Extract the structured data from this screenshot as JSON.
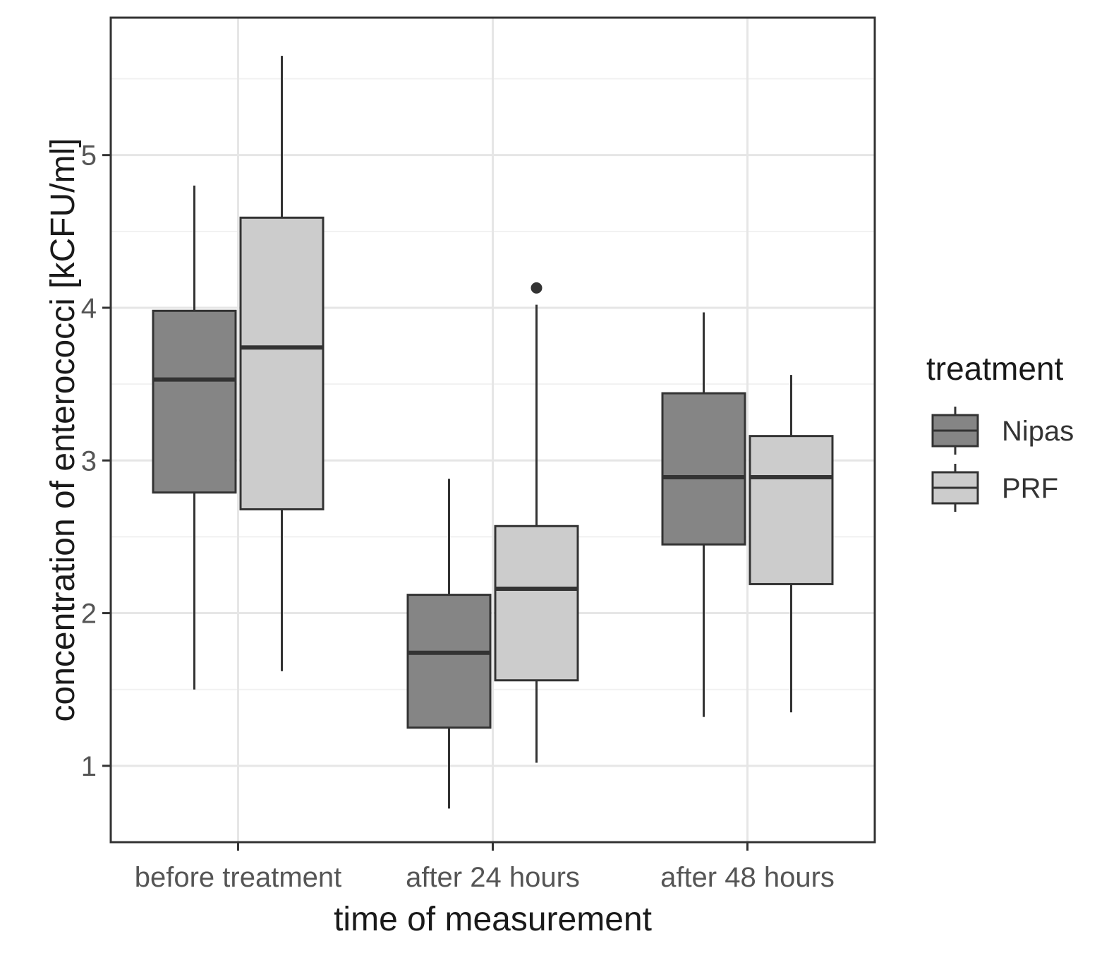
{
  "chart_data": {
    "type": "boxplot",
    "title": "",
    "xlabel": "time of measurement",
    "ylabel": "concentration of enterococci [kCFU/ml]",
    "ylim": [
      0.5,
      5.9
    ],
    "yticks": [
      1,
      2,
      3,
      4,
      5
    ],
    "categories": [
      "before treatment",
      "after 24 hours",
      "after 48 hours"
    ],
    "legend": {
      "title": "treatment",
      "position": "right"
    },
    "series": [
      {
        "name": "Nipas",
        "color": "#858585",
        "boxes": [
          {
            "category": "before treatment",
            "whisker_low": 1.5,
            "q1": 2.79,
            "median": 3.53,
            "q3": 3.98,
            "whisker_high": 4.8,
            "outliers": []
          },
          {
            "category": "after 24 hours",
            "whisker_low": 0.72,
            "q1": 1.25,
            "median": 1.74,
            "q3": 2.12,
            "whisker_high": 2.88,
            "outliers": []
          },
          {
            "category": "after 48 hours",
            "whisker_low": 1.32,
            "q1": 2.45,
            "median": 2.89,
            "q3": 3.44,
            "whisker_high": 3.97,
            "outliers": []
          }
        ]
      },
      {
        "name": "PRF",
        "color": "#cccccc",
        "boxes": [
          {
            "category": "before treatment",
            "whisker_low": 1.62,
            "q1": 2.68,
            "median": 3.74,
            "q3": 4.59,
            "whisker_high": 5.65,
            "outliers": []
          },
          {
            "category": "after 24 hours",
            "whisker_low": 1.02,
            "q1": 1.56,
            "median": 2.16,
            "q3": 2.57,
            "whisker_high": 4.02,
            "outliers": [
              4.13
            ]
          },
          {
            "category": "after 48 hours",
            "whisker_low": 1.35,
            "q1": 2.19,
            "median": 2.89,
            "q3": 3.16,
            "whisker_high": 3.56,
            "outliers": []
          }
        ]
      }
    ]
  }
}
